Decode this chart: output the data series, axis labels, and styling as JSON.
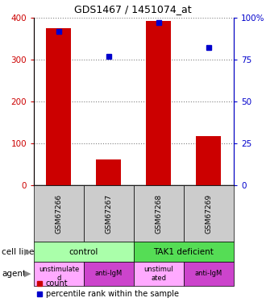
{
  "title": "GDS1467 / 1451074_at",
  "samples": [
    "GSM67266",
    "GSM67267",
    "GSM67268",
    "GSM67269"
  ],
  "counts": [
    375,
    62,
    392,
    118
  ],
  "percentiles": [
    92,
    77,
    97,
    82
  ],
  "ylim_left": [
    0,
    400
  ],
  "ylim_right": [
    0,
    100
  ],
  "yticks_left": [
    0,
    100,
    200,
    300,
    400
  ],
  "yticks_right": [
    0,
    25,
    50,
    75,
    100
  ],
  "ytick_labels_right": [
    "0",
    "25",
    "50",
    "75",
    "100%"
  ],
  "bar_color": "#cc0000",
  "dot_color": "#0000cc",
  "sample_bg_color": "#cccccc",
  "cell_line_colors": [
    "#aaffaa",
    "#55dd55"
  ],
  "agent_colors": [
    "#ffaaff",
    "#cc44cc",
    "#ffaaff",
    "#cc44cc"
  ],
  "agent_labels": [
    "unstimulate\nd",
    "anti-IgM",
    "unstimul\nated",
    "anti-IgM"
  ],
  "left_axis_color": "#cc0000",
  "right_axis_color": "#0000cc"
}
